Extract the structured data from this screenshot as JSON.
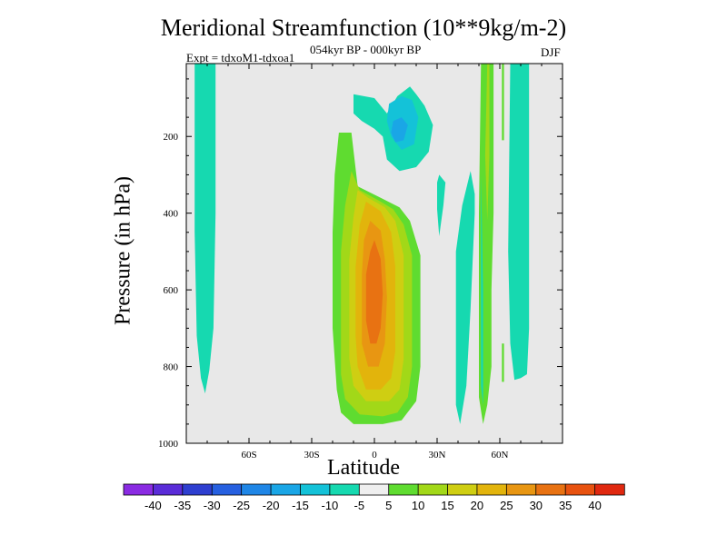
{
  "chart_data": {
    "type": "heatmap",
    "title": "Meridional Streamfunction (10**9kg/m-2)",
    "subtitle": "054kyr BP - 000kyr BP",
    "expt_label": "Expt = tdxoM1-tdxoa1",
    "season": "DJF",
    "xlabel": "Latitude",
    "ylabel": "Pressure (in hPa)",
    "xlim": [
      -90,
      90
    ],
    "ylim": [
      1000,
      10
    ],
    "x_ticks": [
      {
        "value": -60,
        "label": "60S"
      },
      {
        "value": -30,
        "label": "30S"
      },
      {
        "value": 0,
        "label": "0"
      },
      {
        "value": 30,
        "label": "30N"
      },
      {
        "value": 60,
        "label": "60N"
      }
    ],
    "y_ticks": [
      {
        "value": 200,
        "label": "200"
      },
      {
        "value": 400,
        "label": "400"
      },
      {
        "value": 600,
        "label": "600"
      },
      {
        "value": 800,
        "label": "800"
      },
      {
        "value": 1000,
        "label": "1000"
      }
    ],
    "background_color": "#e8e8e8",
    "colorbar": {
      "levels": [
        "-40",
        "-35",
        "-30",
        "-25",
        "-20",
        "-15",
        "-10",
        "-5",
        "5",
        "10",
        "15",
        "20",
        "25",
        "30",
        "35",
        "40"
      ],
      "colors": [
        "#8a2be2",
        "#5a2cd8",
        "#2e3fd0",
        "#2660e0",
        "#1f86e6",
        "#1aa6e6",
        "#14c2d8",
        "#16d9b0",
        "#efefef",
        "#5fdc30",
        "#a2d818",
        "#cfce12",
        "#e2b40c",
        "#e89612",
        "#e87212",
        "#e85210",
        "#e02810"
      ]
    },
    "contours": [
      {
        "name": "contour-sh-polar-neg",
        "level": "-10 to -5",
        "color": "#16d9b0",
        "points": [
          [
            -86,
            10
          ],
          [
            -76,
            10
          ],
          [
            -76,
            400
          ],
          [
            -77,
            700
          ],
          [
            -79,
            810
          ],
          [
            -81,
            870
          ],
          [
            -83,
            830
          ],
          [
            -85,
            720
          ],
          [
            -86,
            450
          ]
        ]
      },
      {
        "name": "contour-main-pos-5",
        "level": "5 to 10",
        "color": "#5fdc30",
        "points": [
          [
            -17,
            190
          ],
          [
            -11,
            190
          ],
          [
            -8,
            330
          ],
          [
            3,
            360
          ],
          [
            12,
            385
          ],
          [
            17,
            420
          ],
          [
            22,
            510
          ],
          [
            22,
            800
          ],
          [
            20,
            890
          ],
          [
            13,
            940
          ],
          [
            4,
            950
          ],
          [
            -10,
            950
          ],
          [
            -16,
            920
          ],
          [
            -18,
            860
          ],
          [
            -20,
            700
          ],
          [
            -20,
            450
          ],
          [
            -19,
            300
          ]
        ]
      },
      {
        "name": "contour-main-pos-10",
        "level": "10 to 15",
        "color": "#a2d818",
        "points": [
          [
            -11,
            290
          ],
          [
            -7,
            340
          ],
          [
            3,
            370
          ],
          [
            9,
            390
          ],
          [
            14,
            430
          ],
          [
            18,
            510
          ],
          [
            18,
            800
          ],
          [
            16,
            880
          ],
          [
            11,
            920
          ],
          [
            4,
            930
          ],
          [
            -7,
            925
          ],
          [
            -14,
            885
          ],
          [
            -16,
            820
          ],
          [
            -16,
            500
          ],
          [
            -14,
            380
          ]
        ]
      },
      {
        "name": "contour-main-pos-15",
        "level": "15 to 20",
        "color": "#cfce12",
        "points": [
          [
            -8,
            340
          ],
          [
            -3,
            360
          ],
          [
            5,
            385
          ],
          [
            10,
            420
          ],
          [
            14,
            510
          ],
          [
            14,
            780
          ],
          [
            12,
            860
          ],
          [
            7,
            890
          ],
          [
            -4,
            890
          ],
          [
            -10,
            850
          ],
          [
            -12,
            780
          ],
          [
            -12,
            520
          ],
          [
            -10,
            410
          ]
        ]
      },
      {
        "name": "contour-main-pos-20",
        "level": "20 to 25",
        "color": "#e2b40c",
        "points": [
          [
            -4,
            370
          ],
          [
            3,
            395
          ],
          [
            8,
            450
          ],
          [
            10,
            540
          ],
          [
            10,
            760
          ],
          [
            8,
            830
          ],
          [
            3,
            860
          ],
          [
            -4,
            860
          ],
          [
            -8,
            800
          ],
          [
            -9,
            720
          ],
          [
            -9,
            540
          ],
          [
            -7,
            430
          ]
        ]
      },
      {
        "name": "contour-main-pos-25",
        "level": "25 to 30",
        "color": "#e89612",
        "points": [
          [
            -2,
            420
          ],
          [
            3,
            445
          ],
          [
            5,
            520
          ],
          [
            6,
            620
          ],
          [
            5,
            740
          ],
          [
            2,
            800
          ],
          [
            -3,
            800
          ],
          [
            -6,
            740
          ],
          [
            -6,
            560
          ],
          [
            -5,
            470
          ]
        ]
      },
      {
        "name": "contour-main-pos-30",
        "level": "30 to 35",
        "color": "#e87212",
        "points": [
          [
            0,
            470
          ],
          [
            3,
            520
          ],
          [
            4,
            610
          ],
          [
            3,
            700
          ],
          [
            1,
            740
          ],
          [
            -2,
            740
          ],
          [
            -4,
            680
          ],
          [
            -4,
            560
          ],
          [
            -2,
            500
          ]
        ]
      },
      {
        "name": "contour-upper-neg-5",
        "level": "-10 to -5",
        "color": "#16d9b0",
        "points": [
          [
            -10,
            90
          ],
          [
            0,
            100
          ],
          [
            6,
            140
          ],
          [
            11,
            95
          ],
          [
            17,
            70
          ],
          [
            20,
            90
          ],
          [
            24,
            120
          ],
          [
            28,
            170
          ],
          [
            26,
            240
          ],
          [
            20,
            280
          ],
          [
            12,
            290
          ],
          [
            6,
            260
          ],
          [
            4,
            200
          ],
          [
            0,
            180
          ],
          [
            -6,
            160
          ],
          [
            -10,
            140
          ]
        ]
      },
      {
        "name": "contour-upper-neg-10",
        "level": "-15 to -10",
        "color": "#14c2d8",
        "points": [
          [
            7,
            115
          ],
          [
            13,
            95
          ],
          [
            18,
            105
          ],
          [
            21,
            150
          ],
          [
            19,
            220
          ],
          [
            13,
            235
          ],
          [
            8,
            200
          ],
          [
            6,
            160
          ]
        ]
      },
      {
        "name": "contour-upper-neg-15",
        "level": "-20 to -15",
        "color": "#1aa6e6",
        "points": [
          [
            9,
            160
          ],
          [
            13,
            150
          ],
          [
            16,
            170
          ],
          [
            14,
            210
          ],
          [
            10,
            215
          ],
          [
            8,
            190
          ]
        ]
      },
      {
        "name": "contour-30n-small-neg",
        "level": "-10 to -5",
        "color": "#16d9b0",
        "points": [
          [
            31,
            300
          ],
          [
            34,
            320
          ],
          [
            33,
            380
          ],
          [
            31,
            460
          ],
          [
            30,
            390
          ],
          [
            30,
            320
          ]
        ]
      },
      {
        "name": "contour-40n-neg",
        "level": "-10 to -5",
        "color": "#16d9b0",
        "points": [
          [
            46,
            290
          ],
          [
            48,
            350
          ],
          [
            48,
            400
          ],
          [
            46,
            650
          ],
          [
            44,
            850
          ],
          [
            41,
            950
          ],
          [
            39,
            900
          ],
          [
            39,
            500
          ],
          [
            42,
            380
          ]
        ]
      },
      {
        "name": "contour-50n-pos-5",
        "level": "5 to 10",
        "color": "#5fdc30",
        "points": [
          [
            51,
            10
          ],
          [
            57,
            10
          ],
          [
            57,
            400
          ],
          [
            56,
            600
          ],
          [
            56,
            800
          ],
          [
            54,
            900
          ],
          [
            52,
            950
          ],
          [
            50,
            880
          ],
          [
            50,
            400
          ]
        ]
      },
      {
        "name": "contour-55n-pos-10",
        "level": "10 to 15",
        "color": "#a2d818",
        "points": [
          [
            54,
            10
          ],
          [
            55,
            10
          ],
          [
            55,
            250
          ],
          [
            54,
            420
          ],
          [
            53,
            250
          ]
        ]
      },
      {
        "name": "contour-52n-neg-strip",
        "level": "-10 to -5",
        "color": "#16d9b0",
        "points": [
          [
            51,
            300
          ],
          [
            52,
            600
          ],
          [
            52,
            900
          ],
          [
            51,
            850
          ]
        ]
      },
      {
        "name": "contour-60n-thin-pos",
        "level": "5 to 10",
        "color": "#5fdc30",
        "points": [
          [
            61,
            10
          ],
          [
            62,
            10
          ],
          [
            62,
            210
          ],
          [
            61,
            210
          ]
        ]
      },
      {
        "name": "contour-60n-lower-pos",
        "level": "5 to 10",
        "color": "#5fdc30",
        "points": [
          [
            61,
            740
          ],
          [
            62,
            740
          ],
          [
            62,
            840
          ],
          [
            61,
            840
          ]
        ]
      },
      {
        "name": "contour-65n-neg",
        "level": "-10 to -5",
        "color": "#16d9b0",
        "points": [
          [
            65,
            10
          ],
          [
            74,
            10
          ],
          [
            74,
            700
          ],
          [
            73,
            820
          ],
          [
            70,
            830
          ],
          [
            67,
            835
          ],
          [
            65,
            740
          ],
          [
            64,
            500
          ]
        ]
      }
    ]
  }
}
